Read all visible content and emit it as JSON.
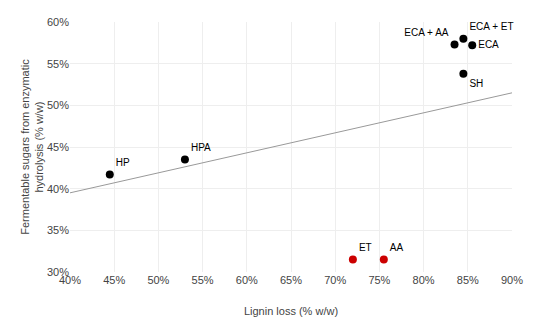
{
  "chart_data": {
    "type": "scatter",
    "xlabel": "Lignin loss (% w/w)",
    "ylabel": "Fermentable sugars from enzymatic\nhydrolysis (% w/w)",
    "xlim": [
      40,
      90
    ],
    "ylim": [
      30,
      60
    ],
    "xticks": [
      {
        "value": 40,
        "label": "40%"
      },
      {
        "value": 45,
        "label": "45%"
      },
      {
        "value": 50,
        "label": "50%"
      },
      {
        "value": 55,
        "label": "55%"
      },
      {
        "value": 60,
        "label": "60%"
      },
      {
        "value": 65,
        "label": "65%"
      },
      {
        "value": 70,
        "label": "70%"
      },
      {
        "value": 75,
        "label": "75%"
      },
      {
        "value": 80,
        "label": "80%"
      },
      {
        "value": 85,
        "label": "85%"
      },
      {
        "value": 90,
        "label": "90%"
      }
    ],
    "yticks": [
      {
        "value": 30,
        "label": "30%"
      },
      {
        "value": 35,
        "label": "35%"
      },
      {
        "value": 40,
        "label": "40%"
      },
      {
        "value": 45,
        "label": "45%"
      },
      {
        "value": 50,
        "label": "50%"
      },
      {
        "value": 55,
        "label": "55%"
      },
      {
        "value": 60,
        "label": "60%"
      }
    ],
    "grid": true,
    "series": [
      {
        "type": "line",
        "x": [
          40,
          90
        ],
        "values": [
          39.5,
          51.5
        ],
        "color": "#999999"
      },
      {
        "type": "scatter",
        "x": [
          44.5,
          53.0,
          72.0,
          75.5,
          83.5,
          84.5,
          85.5,
          84.5
        ],
        "values": [
          41.7,
          43.5,
          31.5,
          31.5,
          57.3,
          58.0,
          57.2,
          53.8
        ],
        "labels": [
          "HP",
          "HPA",
          "ET",
          "AA",
          "ECA + AA",
          "ECA + ET",
          "ECA",
          "SH"
        ],
        "colors": [
          "#000000",
          "#000000",
          "#cc0000",
          "#cc0000",
          "#000000",
          "#000000",
          "#000000",
          "#000000"
        ]
      }
    ]
  }
}
